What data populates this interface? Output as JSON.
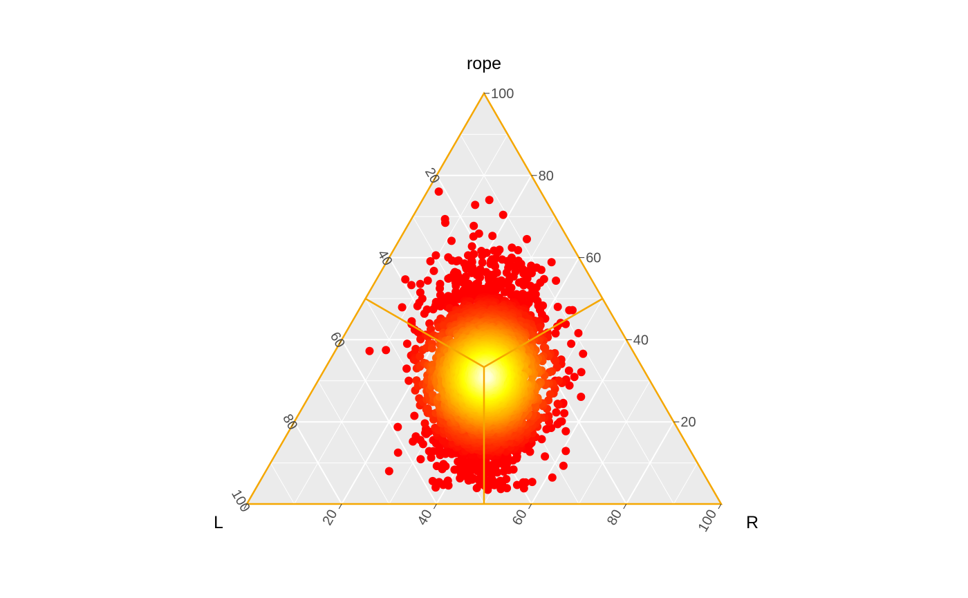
{
  "chart_data": {
    "type": "scatter",
    "subtype": "ternary",
    "title": "",
    "axes": {
      "top": {
        "label": "rope",
        "ticks": [
          "20",
          "40",
          "60",
          "80",
          "100"
        ]
      },
      "left": {
        "label": "L",
        "ticks": [
          "20",
          "40",
          "60",
          "80",
          "100"
        ]
      },
      "right": {
        "label": "R",
        "ticks": [
          "20",
          "40",
          "60",
          "80",
          "100"
        ]
      }
    },
    "range": [
      0,
      100
    ],
    "grid": true,
    "grid_step": 10,
    "panel_color": "#ebebeb",
    "grid_color": "#ffffff",
    "boundary_color": "#f5a700",
    "region_lines": {
      "center": {
        "L": 33.3,
        "R": 33.3,
        "rope": 33.3
      },
      "endpoints": [
        {
          "L": 50,
          "R": 0,
          "rope": 50
        },
        {
          "L": 0,
          "R": 50,
          "rope": 50
        },
        {
          "L": 50,
          "R": 50,
          "rope": 0
        }
      ]
    },
    "point_color_scale": [
      "#ffffe0",
      "#ffff00",
      "#ffa500",
      "#ff4000",
      "#ff0000"
    ],
    "point_cloud": {
      "n_points": 4000,
      "center": {
        "L": 34,
        "R": 35,
        "rope": 31
      },
      "core_spread": 4,
      "outer_spread": 9
    },
    "outliers": [
      {
        "L": 46.7,
        "R": 14.3,
        "rope": 39.0
      },
      {
        "L": 24.1,
        "R": 37.8,
        "rope": 38.1
      },
      {
        "L": 44.6,
        "R": 43.4,
        "rope": 12.0
      },
      {
        "L": 16.5,
        "R": 57.4,
        "rope": 26.1
      },
      {
        "L": 45.3,
        "R": 48.6,
        "rope": 6.1
      },
      {
        "L": 48.4,
        "R": 46.8,
        "rope": 4.8
      },
      {
        "L": 26.3,
        "R": 60.8,
        "rope": 12.9
      },
      {
        "L": 28.6,
        "R": 62.1,
        "rope": 9.3
      },
      {
        "L": 39.0,
        "R": 56.0,
        "rope": 5.0
      },
      {
        "L": 66.0,
        "R": 26.0,
        "rope": 8.0
      },
      {
        "L": 38.0,
        "R": 12.0,
        "rope": 50.0
      },
      {
        "L": 32.0,
        "R": 20.0,
        "rope": 48.0
      },
      {
        "L": 30.0,
        "R": 24.0,
        "rope": 46.0
      },
      {
        "L": 20.0,
        "R": 50.0,
        "rope": 30.0
      },
      {
        "L": 24.0,
        "R": 56.0,
        "rope": 20.0
      }
    ]
  }
}
